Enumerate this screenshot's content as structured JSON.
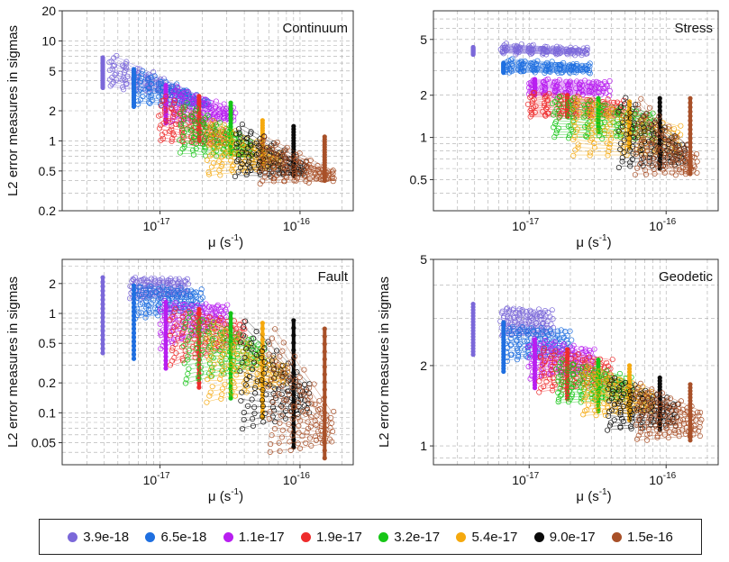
{
  "figure": {
    "legend_label": "legend"
  },
  "legend": [
    {
      "label": "3.9e-18",
      "color": "#7b68d9"
    },
    {
      "label": "6.5e-18",
      "color": "#1f6fe0"
    },
    {
      "label": "1.1e-17",
      "color": "#b81ef0"
    },
    {
      "label": "1.9e-17",
      "color": "#ee2c2c"
    },
    {
      "label": "3.2e-17",
      "color": "#17c617"
    },
    {
      "label": "5.4e-17",
      "color": "#f5a90e"
    },
    {
      "label": "9.0e-17",
      "color": "#0a0a0a"
    },
    {
      "label": "1.5e-16",
      "color": "#a85028"
    }
  ],
  "chart_data": [
    {
      "type": "scatter",
      "title": "Continuum",
      "xlabel_base": "μ (s",
      "xlabel_exp": "-1",
      "xlabel_end": ")",
      "ylabel": "L2 error measures in sigmas",
      "xlim": [
        2e-18,
        2.4e-16
      ],
      "ylim": [
        0.2,
        20
      ],
      "xticks": [
        {
          "value": 1e-17,
          "base": "10",
          "exp": "-17"
        },
        {
          "value": 1e-16,
          "base": "10",
          "exp": "-16"
        }
      ],
      "yticks": [
        {
          "value": 0.2,
          "label": "0.2"
        },
        {
          "value": 0.5,
          "label": "0.5"
        },
        {
          "value": 1,
          "label": "1"
        },
        {
          "value": 2,
          "label": "2"
        },
        {
          "value": 5,
          "label": "5"
        },
        {
          "value": 10,
          "label": "10"
        },
        {
          "value": 20,
          "label": "20"
        }
      ],
      "series": [
        {
          "name": "3.9e-18",
          "x": 3.9e-18,
          "vertical": [
            3.4,
            6.8
          ],
          "cloud": [
            4.4e-18,
            1.6e-17,
            3.5,
            7.0,
            2.8,
            3.2
          ]
        },
        {
          "name": "6.5e-18",
          "x": 6.5e-18,
          "vertical": [
            2.2,
            5.2
          ],
          "cloud": [
            6.9e-18,
            2.2e-17,
            2.4,
            5.0,
            2.2,
            2.6
          ]
        },
        {
          "name": "1.1e-17",
          "x": 1.1e-17,
          "vertical": [
            1.5,
            3.6
          ],
          "cloud": [
            1.2e-17,
            3.4e-17,
            1.5,
            3.4,
            1.6,
            2.1
          ]
        },
        {
          "name": "1.9e-17",
          "x": 1.9e-17,
          "vertical": [
            1.0,
            2.8
          ],
          "cloud": [
            1e-17,
            3e-17,
            1.0,
            2.8,
            0.9,
            1.3
          ]
        },
        {
          "name": "3.2e-17",
          "x": 3.2e-17,
          "vertical": [
            0.75,
            2.4
          ],
          "cloud": [
            1.4e-17,
            4.5e-17,
            0.75,
            2.4,
            0.7,
            1.0
          ]
        },
        {
          "name": "5.4e-17",
          "x": 5.4e-17,
          "vertical": [
            0.6,
            1.6
          ],
          "cloud": [
            2.2e-17,
            7.2e-17,
            0.45,
            1.6,
            0.55,
            0.75
          ]
        },
        {
          "name": "9.0e-17",
          "x": 9e-17,
          "vertical": [
            0.45,
            1.4
          ],
          "cloud": [
            3.5e-17,
            1.1e-16,
            0.45,
            1.45,
            0.45,
            0.6
          ]
        },
        {
          "name": "1.5e-16",
          "x": 1.5e-16,
          "vertical": [
            0.4,
            1.1
          ],
          "cloud": [
            5.2e-17,
            1.75e-16,
            0.38,
            1.1,
            0.4,
            0.5
          ]
        }
      ]
    },
    {
      "type": "scatter",
      "title": "Stress",
      "xlabel_base": "μ (s",
      "xlabel_exp": "-1",
      "xlabel_end": ")",
      "ylabel": "",
      "xlim": [
        2e-18,
        2.4e-16
      ],
      "ylim": [
        0.3,
        8
      ],
      "xticks": [
        {
          "value": 1e-17,
          "base": "10",
          "exp": "-17"
        },
        {
          "value": 1e-16,
          "base": "10",
          "exp": "-16"
        }
      ],
      "yticks": [
        {
          "value": 0.5,
          "label": "0.5"
        },
        {
          "value": 1,
          "label": "1"
        },
        {
          "value": 2,
          "label": "2"
        },
        {
          "value": 5,
          "label": "5"
        }
      ],
      "series": [
        {
          "name": "3.9e-18",
          "x": 3.9e-18,
          "vertical": [
            3.9,
            4.4
          ],
          "cloud": [
            6.3e-18,
            2.7e-17,
            4.0,
            4.6,
            3.9,
            4.3
          ]
        },
        {
          "name": "6.5e-18",
          "x": 6.5e-18,
          "vertical": [
            2.9,
            3.4
          ],
          "cloud": [
            6.8e-18,
            2.8e-17,
            2.9,
            3.6,
            2.9,
            3.3
          ]
        },
        {
          "name": "1.1e-17",
          "x": 1.1e-17,
          "vertical": [
            2.0,
            2.6
          ],
          "cloud": [
            1e-17,
            3.8e-17,
            2.0,
            2.6,
            2.0,
            2.5
          ]
        },
        {
          "name": "1.9e-17",
          "x": 1.9e-17,
          "vertical": [
            1.4,
            2.0
          ],
          "cloud": [
            1e-17,
            4.8e-17,
            1.4,
            2.1,
            1.4,
            1.8
          ]
        },
        {
          "name": "3.2e-17",
          "x": 3.2e-17,
          "vertical": [
            1.1,
            1.9
          ],
          "cloud": [
            1.5e-17,
            8e-17,
            1.0,
            2.0,
            1.0,
            1.5
          ]
        },
        {
          "name": "5.4e-17",
          "x": 5.4e-17,
          "vertical": [
            0.85,
            1.8
          ],
          "cloud": [
            2.1e-17,
            1.25e-16,
            0.75,
            1.9,
            0.75,
            1.2
          ]
        },
        {
          "name": "9.0e-17",
          "x": 9e-17,
          "vertical": [
            0.6,
            1.9
          ],
          "cloud": [
            4.6e-17,
            1.4e-16,
            0.62,
            1.9,
            0.65,
            0.9
          ]
        },
        {
          "name": "1.5e-16",
          "x": 1.5e-16,
          "vertical": [
            0.55,
            1.9
          ],
          "cloud": [
            6e-17,
            1.65e-16,
            0.55,
            1.9,
            0.55,
            0.75
          ]
        }
      ]
    },
    {
      "type": "scatter",
      "title": "Fault",
      "xlabel_base": "μ (s",
      "xlabel_exp": "-1",
      "xlabel_end": ")",
      "ylabel": "L2 error measures in sigmas",
      "xlim": [
        2e-18,
        2.4e-16
      ],
      "ylim": [
        0.03,
        3.5
      ],
      "xticks": [
        {
          "value": 1e-17,
          "base": "10",
          "exp": "-17"
        },
        {
          "value": 1e-16,
          "base": "10",
          "exp": "-16"
        }
      ],
      "yticks": [
        {
          "value": 0.05,
          "label": "0.05"
        },
        {
          "value": 0.1,
          "label": "0.1"
        },
        {
          "value": 0.2,
          "label": "0.2"
        },
        {
          "value": 0.5,
          "label": "0.5"
        },
        {
          "value": 1,
          "label": "1"
        },
        {
          "value": 2,
          "label": "2"
        }
      ],
      "series": [
        {
          "name": "3.9e-18",
          "x": 3.9e-18,
          "vertical": [
            0.4,
            2.3
          ],
          "cloud": [
            6.2e-18,
            1.6e-17,
            1.4,
            2.3,
            1.5,
            2.2
          ]
        },
        {
          "name": "6.5e-18",
          "x": 6.5e-18,
          "vertical": [
            0.35,
            1.9
          ],
          "cloud": [
            6.7e-18,
            2e-17,
            0.9,
            1.9,
            1.1,
            1.7
          ]
        },
        {
          "name": "1.1e-17",
          "x": 1.1e-17,
          "vertical": [
            0.28,
            1.3
          ],
          "cloud": [
            1e-17,
            3e-17,
            0.45,
            1.3,
            0.8,
            1.2
          ]
        },
        {
          "name": "1.9e-17",
          "x": 1.9e-17,
          "vertical": [
            0.18,
            1.1
          ],
          "cloud": [
            1.2e-17,
            4e-17,
            0.3,
            1.1,
            0.5,
            0.8
          ]
        },
        {
          "name": "3.2e-17",
          "x": 3.2e-17,
          "vertical": [
            0.14,
            1.0
          ],
          "cloud": [
            1.5e-17,
            5.5e-17,
            0.2,
            1.0,
            0.3,
            0.5
          ]
        },
        {
          "name": "5.4e-17",
          "x": 5.4e-17,
          "vertical": [
            0.09,
            0.8
          ],
          "cloud": [
            2.2e-17,
            8e-17,
            0.13,
            0.8,
            0.2,
            0.3
          ]
        },
        {
          "name": "9.0e-17",
          "x": 9e-17,
          "vertical": [
            0.045,
            0.85
          ],
          "cloud": [
            3.8e-17,
            1.15e-16,
            0.07,
            0.85,
            0.1,
            0.2
          ]
        },
        {
          "name": "1.5e-16",
          "x": 1.5e-16,
          "vertical": [
            0.035,
            0.7
          ],
          "cloud": [
            6e-17,
            1.7e-16,
            0.04,
            0.7,
            0.05,
            0.1
          ]
        }
      ]
    },
    {
      "type": "scatter",
      "title": "Geodetic",
      "xlabel_base": "μ (s",
      "xlabel_exp": "-1",
      "xlabel_end": ")",
      "ylabel": "L2 error measures in sigmas",
      "xlim": [
        2e-18,
        2.4e-16
      ],
      "ylim": [
        0.85,
        5
      ],
      "xticks": [
        {
          "value": 1e-17,
          "base": "10",
          "exp": "-17"
        },
        {
          "value": 1e-16,
          "base": "10",
          "exp": "-16"
        }
      ],
      "yticks": [
        {
          "value": 1,
          "label": "1"
        },
        {
          "value": 2,
          "label": "2"
        },
        {
          "value": 5,
          "label": "5"
        }
      ],
      "series": [
        {
          "name": "3.9e-18",
          "x": 3.9e-18,
          "vertical": [
            2.2,
            3.4
          ],
          "cloud": [
            6.3e-18,
            1.5e-17,
            2.6,
            3.3,
            2.6,
            3.2
          ]
        },
        {
          "name": "6.5e-18",
          "x": 6.5e-18,
          "vertical": [
            1.9,
            2.9
          ],
          "cloud": [
            6.8e-18,
            2e-17,
            2.1,
            2.8,
            2.2,
            2.7
          ]
        },
        {
          "name": "1.1e-17",
          "x": 1.1e-17,
          "vertical": [
            1.65,
            2.5
          ],
          "cloud": [
            1e-17,
            3e-17,
            1.8,
            2.5,
            1.9,
            2.3
          ]
        },
        {
          "name": "1.9e-17",
          "x": 1.9e-17,
          "vertical": [
            1.5,
            2.3
          ],
          "cloud": [
            1.2e-17,
            4e-17,
            1.6,
            2.3,
            1.7,
            2.1
          ]
        },
        {
          "name": "3.2e-17",
          "x": 3.2e-17,
          "vertical": [
            1.35,
            2.1
          ],
          "cloud": [
            1.6e-17,
            5.5e-17,
            1.45,
            2.1,
            1.5,
            1.8
          ]
        },
        {
          "name": "5.4e-17",
          "x": 5.4e-17,
          "vertical": [
            1.25,
            2.0
          ],
          "cloud": [
            2.5e-17,
            8e-17,
            1.3,
            2.0,
            1.35,
            1.6
          ]
        },
        {
          "name": "9.0e-17",
          "x": 9e-17,
          "vertical": [
            1.15,
            1.8
          ],
          "cloud": [
            3.8e-17,
            1.2e-16,
            1.15,
            1.8,
            1.2,
            1.45
          ]
        },
        {
          "name": "1.5e-16",
          "x": 1.5e-16,
          "vertical": [
            1.05,
            1.7
          ],
          "cloud": [
            6e-17,
            1.8e-16,
            1.05,
            1.7,
            1.1,
            1.35
          ]
        }
      ]
    }
  ]
}
